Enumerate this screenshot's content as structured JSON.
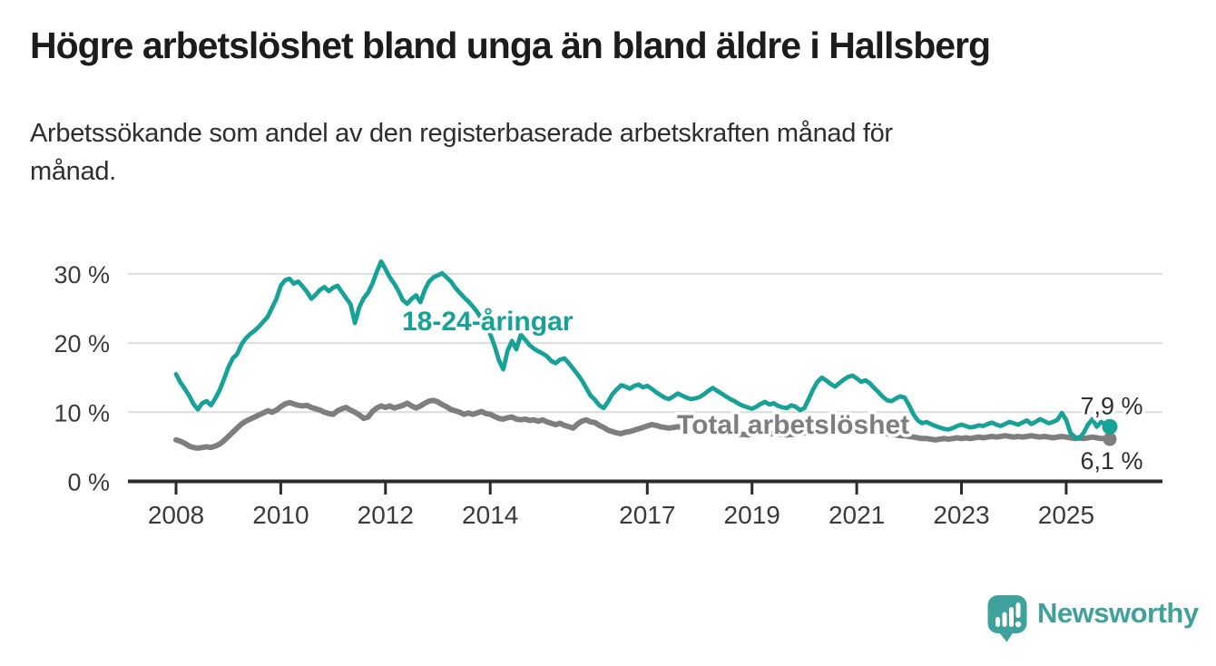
{
  "header": {
    "title": "Högre arbetslöshet bland unga än bland äldre i Hallsberg",
    "subtitle_lines": [
      "Arbetssökande som andel av den registerbaserade arbetskraften månad för",
      "månad."
    ]
  },
  "footer": {
    "brand": "Newsworthy",
    "brand_color": "#3fa19b",
    "logo_icon": "bar-chart-speech-bubble"
  },
  "chart_data": {
    "type": "line",
    "unit": "%",
    "frequency": "monthly",
    "x_start": "2008-01",
    "x_end": "2025-11",
    "x_tick_years": [
      2008,
      2010,
      2012,
      2014,
      2017,
      2019,
      2021,
      2023,
      2025
    ],
    "y_ticks": [
      0,
      10,
      20,
      30
    ],
    "y_tick_suffix": " %",
    "ylim": [
      0,
      33
    ],
    "grid": true,
    "grid_color": "#dcdcdc",
    "axis_color": "#2b2b2b",
    "tick_label_color": "#3a3a3a",
    "series": [
      {
        "name": "Total arbetslöshet",
        "color": "#7e7e7e",
        "end_label": "6,1 %",
        "end_value": 6.1,
        "values": [
          6.0,
          5.8,
          5.5,
          5.1,
          4.9,
          4.8,
          4.9,
          5.0,
          4.9,
          5.1,
          5.4,
          5.9,
          6.5,
          7.1,
          7.7,
          8.3,
          8.7,
          9.0,
          9.3,
          9.6,
          9.9,
          10.2,
          10.0,
          10.3,
          10.8,
          11.2,
          11.4,
          11.2,
          11.0,
          10.9,
          11.0,
          10.7,
          10.5,
          10.3,
          10.0,
          9.8,
          9.7,
          10.2,
          10.5,
          10.7,
          10.3,
          10.0,
          9.6,
          9.1,
          9.3,
          10.1,
          10.6,
          10.9,
          10.7,
          10.9,
          10.6,
          10.8,
          11.0,
          11.3,
          10.9,
          10.6,
          10.9,
          11.3,
          11.6,
          11.7,
          11.5,
          11.1,
          10.8,
          10.4,
          10.2,
          10.0,
          9.7,
          9.9,
          9.7,
          9.9,
          10.1,
          9.8,
          9.7,
          9.4,
          9.1,
          9.0,
          9.2,
          9.3,
          9.0,
          8.9,
          9.0,
          8.8,
          8.9,
          8.7,
          8.9,
          8.6,
          8.4,
          8.2,
          8.4,
          8.1,
          7.9,
          7.7,
          8.3,
          8.7,
          8.9,
          8.6,
          8.5,
          8.1,
          7.8,
          7.4,
          7.2,
          7.0,
          6.9,
          7.1,
          7.2,
          7.4,
          7.6,
          7.8,
          8.0,
          8.2,
          8.1,
          7.9,
          7.8,
          7.7,
          7.8,
          7.9,
          7.8,
          7.7,
          7.6,
          7.7,
          7.6,
          7.5,
          7.4,
          7.3,
          7.2,
          7.1,
          7.0,
          7.0,
          6.9,
          6.8,
          6.8,
          6.7,
          6.8,
          6.9,
          7.0,
          7.0,
          6.9,
          6.9,
          6.8,
          6.8,
          6.7,
          6.8,
          6.8,
          6.9,
          7.0,
          7.3,
          7.8,
          8.3,
          8.6,
          8.8,
          8.7,
          8.6,
          8.5,
          8.4,
          8.3,
          8.2,
          8.1,
          8.0,
          7.9,
          7.7,
          7.5,
          7.3,
          7.1,
          6.9,
          6.8,
          6.7,
          6.6,
          6.6,
          6.5,
          6.4,
          6.3,
          6.2,
          6.2,
          6.1,
          6.0,
          6.1,
          6.2,
          6.1,
          6.2,
          6.3,
          6.2,
          6.3,
          6.2,
          6.3,
          6.4,
          6.3,
          6.4,
          6.5,
          6.4,
          6.5,
          6.6,
          6.5,
          6.4,
          6.5,
          6.4,
          6.5,
          6.6,
          6.5,
          6.4,
          6.5,
          6.4,
          6.3,
          6.4,
          6.5,
          6.4,
          6.3,
          6.2,
          6.3,
          6.2,
          6.3,
          6.4,
          6.3,
          6.2,
          6.2,
          6.1
        ]
      },
      {
        "name": "18-24-åringar",
        "color": "#16a296",
        "end_label": "7,9 %",
        "end_value": 7.9,
        "values": [
          15.5,
          14.3,
          13.4,
          12.4,
          11.2,
          10.4,
          11.3,
          11.6,
          11.0,
          12.0,
          13.2,
          14.8,
          16.5,
          17.8,
          18.4,
          19.8,
          20.7,
          21.3,
          21.8,
          22.4,
          23.1,
          23.8,
          25.1,
          26.4,
          28.3,
          29.1,
          29.3,
          28.6,
          28.9,
          28.2,
          27.4,
          26.4,
          27.0,
          27.7,
          28.1,
          27.5,
          28.0,
          28.3,
          27.4,
          26.5,
          25.6,
          22.9,
          25.2,
          26.5,
          27.3,
          28.6,
          30.3,
          31.8,
          30.7,
          29.5,
          28.6,
          27.5,
          26.2,
          25.7,
          26.4,
          26.9,
          25.9,
          27.7,
          28.9,
          29.5,
          29.8,
          30.1,
          29.5,
          28.9,
          28.0,
          27.3,
          26.6,
          26.0,
          25.3,
          24.5,
          23.5,
          22.3,
          21.3,
          19.6,
          17.5,
          16.2,
          18.9,
          20.3,
          19.1,
          21.2,
          20.5,
          19.7,
          19.2,
          18.8,
          18.5,
          18.1,
          17.4,
          17.1,
          17.6,
          17.8,
          17.1,
          16.3,
          15.5,
          14.6,
          13.5,
          12.4,
          11.8,
          11.0,
          10.6,
          11.5,
          12.6,
          13.3,
          13.9,
          13.7,
          13.4,
          13.8,
          14.0,
          13.6,
          13.8,
          13.4,
          12.9,
          12.5,
          12.1,
          11.9,
          12.3,
          12.7,
          12.4,
          12.1,
          11.9,
          12.0,
          12.2,
          12.6,
          13.1,
          13.5,
          13.1,
          12.7,
          12.3,
          11.9,
          11.6,
          11.2,
          10.9,
          10.7,
          10.5,
          10.8,
          11.2,
          11.5,
          11.1,
          11.3,
          10.9,
          10.7,
          10.6,
          11.0,
          10.8,
          10.3,
          10.6,
          11.9,
          13.3,
          14.4,
          15.0,
          14.6,
          14.1,
          13.7,
          14.2,
          14.7,
          15.1,
          15.3,
          14.9,
          14.4,
          14.6,
          14.2,
          13.5,
          12.9,
          12.2,
          11.7,
          11.6,
          12.0,
          12.3,
          12.1,
          11.0,
          9.7,
          8.8,
          8.4,
          8.6,
          8.3,
          8.0,
          7.8,
          7.6,
          7.5,
          7.7,
          8.0,
          8.2,
          8.0,
          7.8,
          7.9,
          8.1,
          8.0,
          8.3,
          8.5,
          8.2,
          8.0,
          8.3,
          8.6,
          8.4,
          8.2,
          8.5,
          8.8,
          8.3,
          8.6,
          9.0,
          8.7,
          8.4,
          8.6,
          8.9,
          9.9,
          8.9,
          7.0,
          6.4,
          6.2,
          7.0,
          8.2,
          9.0,
          7.9,
          8.6,
          8.2,
          7.9
        ]
      }
    ]
  }
}
